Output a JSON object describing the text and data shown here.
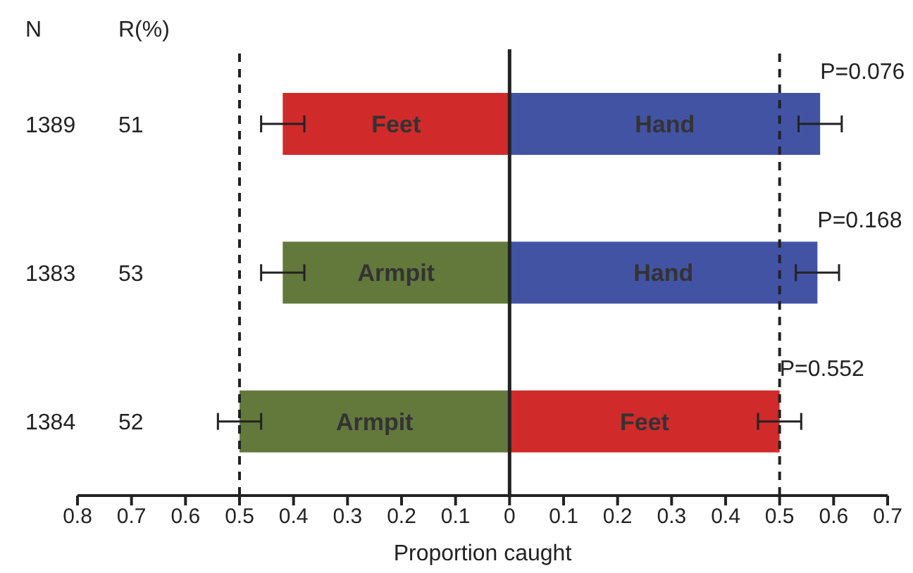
{
  "chart_data": {
    "type": "bar",
    "orientation": "horizontal",
    "stacked": true,
    "xlabel": "Proportion caught",
    "categories": [
      "1389",
      "1383",
      "1384"
    ],
    "series": [
      {
        "colors": [
          "#d12a2b",
          "#63793c",
          "#63793c"
        ],
        "values": [
          -0.42,
          -0.42,
          -0.5
        ],
        "errors": [
          0.04,
          0.04,
          0.04
        ],
        "value_labels": [
          "Feet",
          "Armpit",
          "Armpit"
        ]
      },
      {
        "colors": [
          "#4353a3",
          "#4353a3",
          "#d12a2b"
        ],
        "values": [
          0.575,
          0.57,
          0.5
        ],
        "errors": [
          0.04,
          0.04,
          0.04
        ],
        "value_labels": [
          "Hand",
          "Hand",
          "Feet"
        ]
      }
    ],
    "xlim": [
      -0.8,
      0.7
    ],
    "xticks": [
      {
        "value": -0.8,
        "label": "0.8"
      },
      {
        "value": -0.7,
        "label": "0.7"
      },
      {
        "value": -0.6,
        "label": "0.6"
      },
      {
        "value": -0.5,
        "label": "0.5"
      },
      {
        "value": -0.4,
        "label": "0.4"
      },
      {
        "value": -0.3,
        "label": "0.3"
      },
      {
        "value": -0.2,
        "label": "0.2"
      },
      {
        "value": -0.1,
        "label": "0.1"
      },
      0,
      0.1,
      0.2,
      0.3,
      0.4,
      0.5,
      0.6,
      0.7
    ],
    "ref_lines": [
      {
        "axis": "x",
        "value": -0.5,
        "color": "#222222",
        "line_style": "dashed"
      },
      {
        "axis": "x",
        "value": 0,
        "color": "#222222",
        "line_style": "solid"
      },
      {
        "axis": "x",
        "value": 0.5,
        "color": "#222222",
        "line_style": "dashed"
      }
    ],
    "annotations": [
      "N",
      "R(%)",
      "51",
      "53",
      "52",
      {
        "text": "P=0.076",
        "x": 0.575,
        "y": "1389"
      },
      {
        "text": "P=0.168",
        "x": 0.57,
        "y": "1383"
      },
      {
        "text": "P=0.552",
        "x": 0.5,
        "y": "1384"
      }
    ],
    "grid": false,
    "legend": false
  }
}
